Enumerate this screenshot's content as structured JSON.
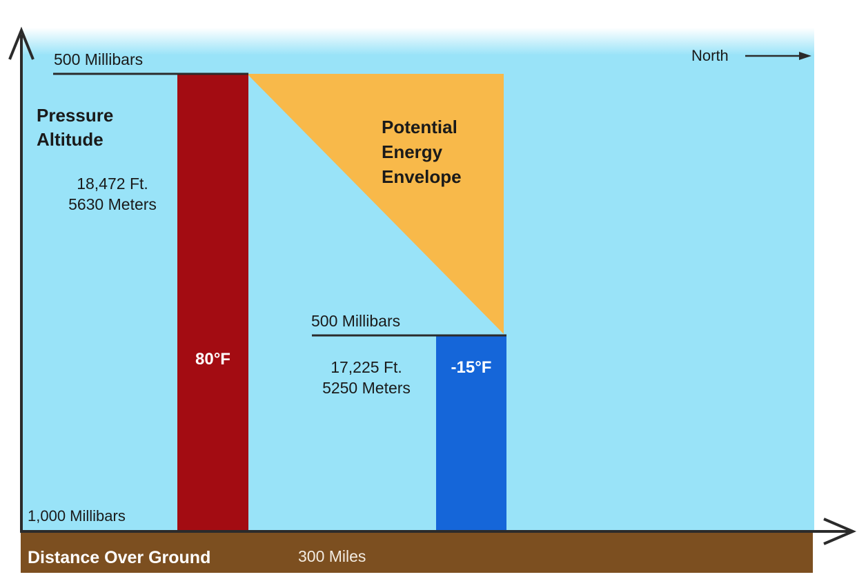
{
  "labels": {
    "upper_level": "500 Millibars",
    "north": "North",
    "y_axis_title_line1": "Pressure",
    "y_axis_title_line2": "Altitude",
    "left_height_ft": "18,472 Ft.",
    "left_height_m": "5630 Meters",
    "envelope_line1": "Potential",
    "envelope_line2": "Energy",
    "envelope_line3": "Envelope",
    "lower_level": "500 Millibars",
    "right_height_ft": "17,225 Ft.",
    "right_height_m": "5250 Meters",
    "warm_temp": "80°F",
    "cold_temp": "-15°F",
    "surface_level": "1,000 Millibars",
    "x_axis_title": "Distance Over Ground",
    "distance": "300 Miles"
  },
  "colors": {
    "sky": "#99e3f8",
    "ground": "#7c4f20",
    "warm_column": "#a30c12",
    "cold_column": "#1566d9",
    "envelope": "#f8b94a",
    "axis": "#2b2b2b"
  }
}
